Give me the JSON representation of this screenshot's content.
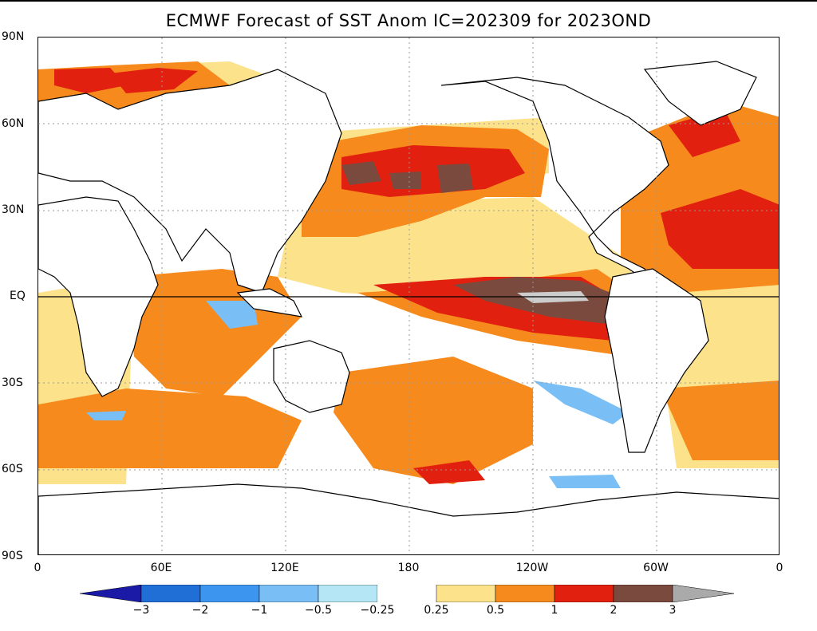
{
  "title": "ECMWF Forecast of SST Anom IC=202309 for 2023OND",
  "lat_labels": [
    "90N",
    "60N",
    "30N",
    "EQ",
    "30S",
    "60S",
    "90S"
  ],
  "lon_labels": [
    "0",
    "60E",
    "120E",
    "180",
    "120W",
    "60W",
    "0"
  ],
  "colorbar": {
    "labels": [
      "-3",
      "-2",
      "-1",
      "-0.5",
      "-0.25",
      "0.25",
      "0.5",
      "1",
      "2",
      "3"
    ],
    "colors": [
      "#1a1aa6",
      "#1f6fd6",
      "#3c95ef",
      "#79bff5",
      "#b4e6f5",
      "#ffffff",
      "#fbe28b",
      "#f78a1c",
      "#e2200f",
      "#7a4a3e",
      "#aaaaaa"
    ]
  }
}
